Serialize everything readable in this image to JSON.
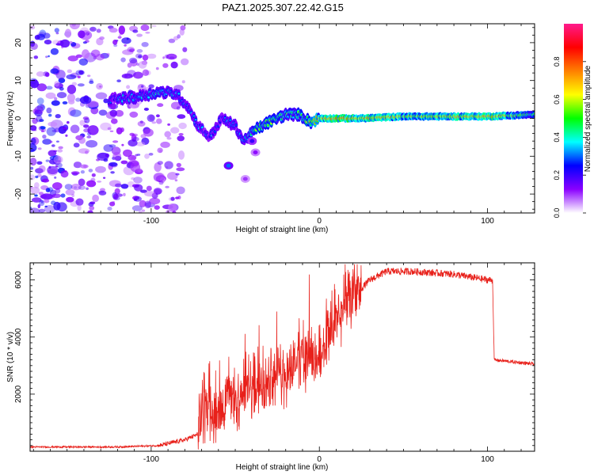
{
  "title": "PAZ1.2025.307.22.42.G15",
  "colors": {
    "snr_line": "#e8201a",
    "axis": "#000000",
    "background": "#ffffff"
  },
  "chart_data": [
    {
      "type": "heatmap",
      "name": "spectrogram",
      "xlabel": "Height of straight line (km)",
      "ylabel": "Frequency (Hz)",
      "xlim": [
        -172,
        128
      ],
      "ylim": [
        -25,
        25
      ],
      "x_ticks": [
        -100,
        0,
        100
      ],
      "y_ticks": [
        -20,
        -10,
        0,
        10,
        20
      ],
      "colorbar": {
        "label": "Normalized spectral amplitude",
        "range": [
          0,
          1
        ],
        "ticks": [
          "0.0",
          "0.2",
          "0.4",
          "0.6",
          "0.8"
        ],
        "colormap": [
          "#ffffff",
          "#8a00ff",
          "#0000ff",
          "#00ffff",
          "#00ff00",
          "#ffff00",
          "#ff8000",
          "#ff0000",
          "#ff1a8c"
        ]
      },
      "ridge": {
        "x": [
          -125,
          -110,
          -95,
          -85,
          -78,
          -72,
          -65,
          -58,
          -50,
          -45,
          -38,
          -30,
          -20,
          -12,
          -5,
          0,
          10,
          25,
          50,
          75,
          100,
          128
        ],
        "freq": [
          5,
          5.5,
          7,
          6.5,
          3,
          -2,
          -5,
          0,
          -2,
          -6,
          -3,
          -1,
          1,
          1,
          -1,
          0,
          0,
          0,
          0.5,
          0.5,
          0.5,
          1
        ],
        "amplitude": [
          0.3,
          0.35,
          0.4,
          0.35,
          0.3,
          0.3,
          0.3,
          0.3,
          0.3,
          0.35,
          0.5,
          0.55,
          0.5,
          0.45,
          0.6,
          0.7,
          0.9,
          0.85,
          0.7,
          0.75,
          0.85,
          0.5
        ]
      },
      "noise_region_x": [
        -172,
        -80
      ]
    },
    {
      "type": "line",
      "name": "snr",
      "xlabel": "Height of straight line (km)",
      "ylabel": "SNR (10 * v/v)",
      "xlim": [
        -172,
        128
      ],
      "ylim": [
        0,
        6600
      ],
      "x_ticks": [
        -100,
        0,
        100
      ],
      "y_ticks": [
        2000,
        4000,
        6000
      ],
      "profile": {
        "x": [
          -172,
          -120,
          -95,
          -80,
          -72,
          -70,
          -60,
          -50,
          -40,
          -30,
          -20,
          -10,
          0,
          10,
          20,
          30,
          40,
          55,
          80,
          100,
          103,
          104,
          128
        ],
        "y": [
          150,
          150,
          200,
          400,
          600,
          1400,
          1600,
          1800,
          2200,
          2400,
          2800,
          3400,
          3200,
          4500,
          5400,
          6000,
          6300,
          6300,
          6200,
          6000,
          6000,
          3200,
          3050
        ]
      }
    }
  ]
}
